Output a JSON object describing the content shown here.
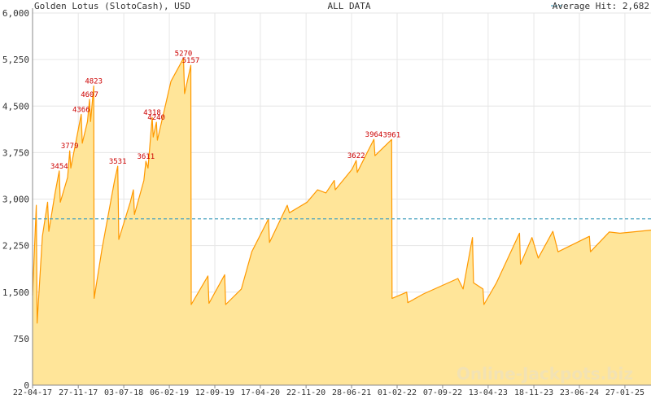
{
  "header": {
    "title": "Golden Lotus (SlotoCash), USD",
    "range_label": "ALL DATA",
    "average_legend": "Average Hit: 2,682"
  },
  "watermark": "Online-Jackpots.biz",
  "colors": {
    "area_fill": "#ffe599",
    "line": "#ff9900",
    "average_line": "#4aa3c0",
    "peak_label": "#cc0000",
    "grid": "#e6e6e6",
    "axis": "#888888",
    "text": "#333333",
    "watermark": "#f2e2b3"
  },
  "chart_data": {
    "type": "area",
    "title": "Golden Lotus (SlotoCash), USD",
    "xlabel": "",
    "ylabel": "",
    "ylim": [
      0,
      6000
    ],
    "yticks": [
      0,
      750,
      1500,
      2250,
      3000,
      3750,
      4500,
      5250,
      6000
    ],
    "ytick_labels": [
      "0",
      "750",
      "1,500",
      "2,250",
      "3,000",
      "3,750",
      "4,500",
      "5,250",
      "6,000"
    ],
    "xlim": [
      "2017-04-22",
      "2025-06-01"
    ],
    "xticks": [
      "2017-04-22",
      "2017-11-27",
      "2018-07-03",
      "2019-02-06",
      "2019-09-12",
      "2020-04-17",
      "2020-11-22",
      "2021-06-28",
      "2022-02-01",
      "2022-09-07",
      "2023-04-13",
      "2023-11-18",
      "2024-06-23",
      "2025-01-27"
    ],
    "xtick_labels": [
      "22-04-17",
      "27-11-17",
      "03-07-18",
      "06-02-19",
      "12-09-19",
      "17-04-20",
      "22-11-20",
      "28-06-21",
      "01-02-22",
      "07-09-22",
      "13-04-23",
      "18-11-23",
      "23-06-24",
      "27-01-25"
    ],
    "grid": true,
    "legend": "top-right",
    "average": 2682,
    "series": [
      {
        "name": "",
        "points": [
          [
            "2017-04-22",
            1450
          ],
          [
            "2017-05-10",
            2900
          ],
          [
            "2017-05-14",
            1000
          ],
          [
            "2017-06-08",
            2400
          ],
          [
            "2017-07-03",
            2950
          ],
          [
            "2017-07-09",
            2480
          ],
          [
            "2017-08-08",
            3100
          ],
          [
            "2017-08-28",
            3454
          ],
          [
            "2017-09-02",
            2950
          ],
          [
            "2017-10-07",
            3350
          ],
          [
            "2017-10-17",
            3779
          ],
          [
            "2017-10-22",
            3500
          ],
          [
            "2017-12-11",
            4366
          ],
          [
            "2017-12-16",
            3900
          ],
          [
            "2018-01-10",
            4250
          ],
          [
            "2018-01-20",
            4607
          ],
          [
            "2018-01-25",
            4250
          ],
          [
            "2018-02-09",
            4823
          ],
          [
            "2018-02-11",
            1400
          ],
          [
            "2018-03-21",
            2200
          ],
          [
            "2018-05-20",
            3300
          ],
          [
            "2018-06-04",
            3531
          ],
          [
            "2018-06-09",
            2350
          ],
          [
            "2018-08-03",
            2950
          ],
          [
            "2018-08-18",
            3150
          ],
          [
            "2018-08-23",
            2750
          ],
          [
            "2018-10-07",
            3300
          ],
          [
            "2018-10-17",
            3611
          ],
          [
            "2018-10-27",
            3500
          ],
          [
            "2018-11-16",
            4318
          ],
          [
            "2018-11-21",
            4000
          ],
          [
            "2018-12-06",
            4240
          ],
          [
            "2018-12-11",
            3950
          ],
          [
            "2019-02-14",
            4900
          ],
          [
            "2019-04-15",
            5270
          ],
          [
            "2019-04-20",
            4700
          ],
          [
            "2019-05-20",
            5157
          ],
          [
            "2019-05-22",
            1300
          ],
          [
            "2019-08-10",
            1760
          ],
          [
            "2019-08-15",
            1320
          ],
          [
            "2019-10-29",
            1780
          ],
          [
            "2019-11-03",
            1300
          ],
          [
            "2020-01-17",
            1550
          ],
          [
            "2020-03-07",
            2150
          ],
          [
            "2020-05-26",
            2680
          ],
          [
            "2020-05-31",
            2300
          ],
          [
            "2020-08-24",
            2900
          ],
          [
            "2020-09-03",
            2780
          ],
          [
            "2020-11-27",
            2950
          ],
          [
            "2021-01-16",
            3150
          ],
          [
            "2021-02-25",
            3100
          ],
          [
            "2021-04-06",
            3300
          ],
          [
            "2021-04-11",
            3150
          ],
          [
            "2021-06-30",
            3480
          ],
          [
            "2021-07-20",
            3622
          ],
          [
            "2021-07-25",
            3430
          ],
          [
            "2021-09-18",
            3800
          ],
          [
            "2021-10-13",
            3964
          ],
          [
            "2021-10-18",
            3700
          ],
          [
            "2022-01-06",
            3961
          ],
          [
            "2022-01-08",
            1400
          ],
          [
            "2022-03-19",
            1500
          ],
          [
            "2022-03-24",
            1330
          ],
          [
            "2022-06-07",
            1470
          ],
          [
            "2022-11-19",
            1720
          ],
          [
            "2022-12-14",
            1550
          ],
          [
            "2023-01-28",
            2380
          ],
          [
            "2023-02-02",
            1650
          ],
          [
            "2023-03-19",
            1550
          ],
          [
            "2023-03-24",
            1300
          ],
          [
            "2023-05-23",
            1650
          ],
          [
            "2023-09-10",
            2450
          ],
          [
            "2023-09-15",
            1950
          ],
          [
            "2023-11-09",
            2380
          ],
          [
            "2023-12-09",
            2050
          ],
          [
            "2024-02-17",
            2480
          ],
          [
            "2024-03-13",
            2150
          ],
          [
            "2024-08-10",
            2400
          ],
          [
            "2024-08-15",
            2150
          ],
          [
            "2024-11-13",
            2470
          ],
          [
            "2025-01-02",
            2450
          ],
          [
            "2025-06-01",
            2500
          ]
        ]
      }
    ],
    "annotations": [
      {
        "x": "2017-08-28",
        "y": 3454,
        "label": "3454"
      },
      {
        "x": "2017-10-17",
        "y": 3779,
        "label": "3779"
      },
      {
        "x": "2017-12-11",
        "y": 4366,
        "label": "4366"
      },
      {
        "x": "2018-01-20",
        "y": 4607,
        "label": "4607"
      },
      {
        "x": "2018-02-09",
        "y": 4823,
        "label": "4823"
      },
      {
        "x": "2018-06-04",
        "y": 3531,
        "label": "3531"
      },
      {
        "x": "2018-10-17",
        "y": 3611,
        "label": "3611"
      },
      {
        "x": "2018-11-16",
        "y": 4318,
        "label": "4318"
      },
      {
        "x": "2018-12-06",
        "y": 4240,
        "label": "4240"
      },
      {
        "x": "2019-04-15",
        "y": 5270,
        "label": "5270"
      },
      {
        "x": "2019-05-20",
        "y": 5157,
        "label": "5157"
      },
      {
        "x": "2021-07-20",
        "y": 3622,
        "label": "3622"
      },
      {
        "x": "2021-10-13",
        "y": 3964,
        "label": "3964"
      },
      {
        "x": "2022-01-06",
        "y": 3961,
        "label": "3961"
      }
    ]
  }
}
